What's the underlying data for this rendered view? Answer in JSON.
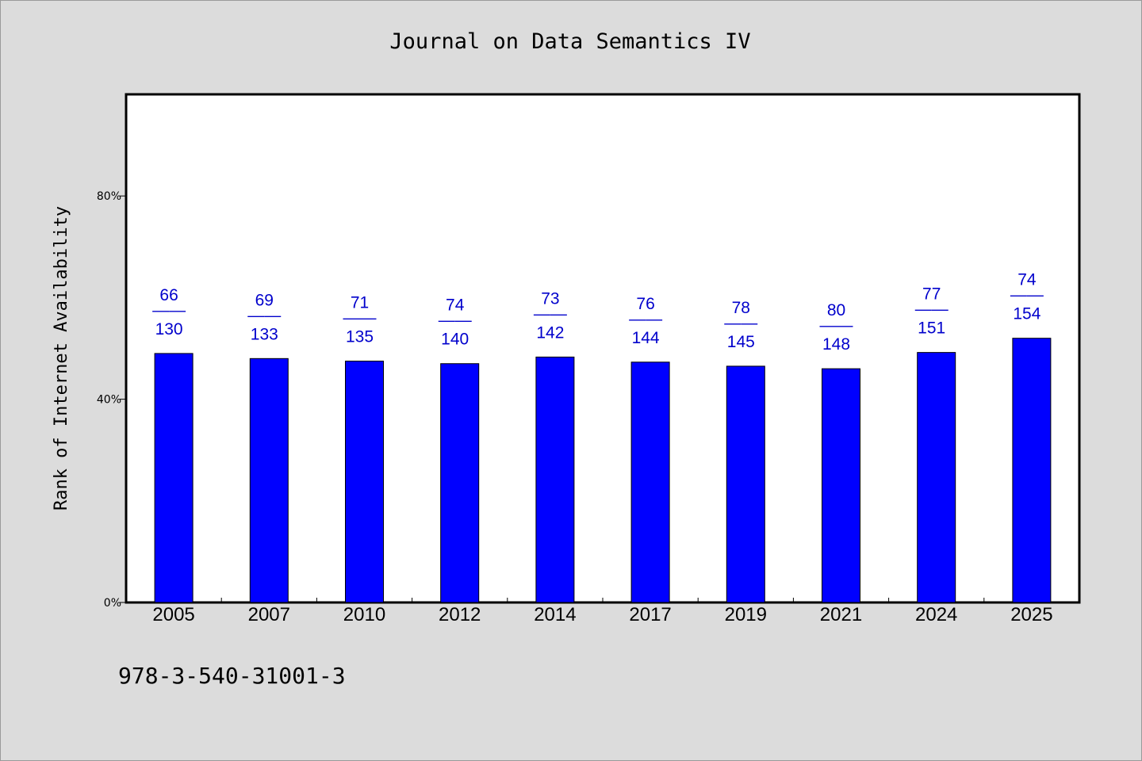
{
  "chart_data": {
    "type": "bar",
    "title": "Journal on Data Semantics IV",
    "xlabel": "",
    "ylabel": "Rank of Internet Availability",
    "categories": [
      "2005",
      "2007",
      "2010",
      "2012",
      "2014",
      "2017",
      "2019",
      "2021",
      "2024",
      "2025"
    ],
    "values": [
      49,
      48,
      47.5,
      47,
      48.3,
      47.3,
      46.5,
      46,
      49.2,
      52
    ],
    "data_labels": [
      {
        "top": "66",
        "sep": "——",
        "bottom": "130"
      },
      {
        "top": "69",
        "sep": "——",
        "bottom": "133"
      },
      {
        "top": "71",
        "sep": "——",
        "bottom": "135"
      },
      {
        "top": "74",
        "sep": "——",
        "bottom": "140"
      },
      {
        "top": "73",
        "sep": "——",
        "bottom": "142"
      },
      {
        "top": "76",
        "sep": "——",
        "bottom": "144"
      },
      {
        "top": "78",
        "sep": "——",
        "bottom": "145"
      },
      {
        "top": "80",
        "sep": "——",
        "bottom": "148"
      },
      {
        "top": "77",
        "sep": "——",
        "bottom": "151"
      },
      {
        "top": "74",
        "sep": "——",
        "bottom": "154"
      }
    ],
    "ylim": [
      0,
      100
    ],
    "yticks": [
      0,
      40,
      80
    ],
    "ytick_labels": [
      "0%",
      "40%",
      "80%"
    ],
    "grid": false,
    "bar_color": "#0000ff",
    "label_color": "#0000cc",
    "plot_background": "#ffffff",
    "page_background": "#dcdcdc"
  },
  "footnote": "978-3-540-31001-3"
}
